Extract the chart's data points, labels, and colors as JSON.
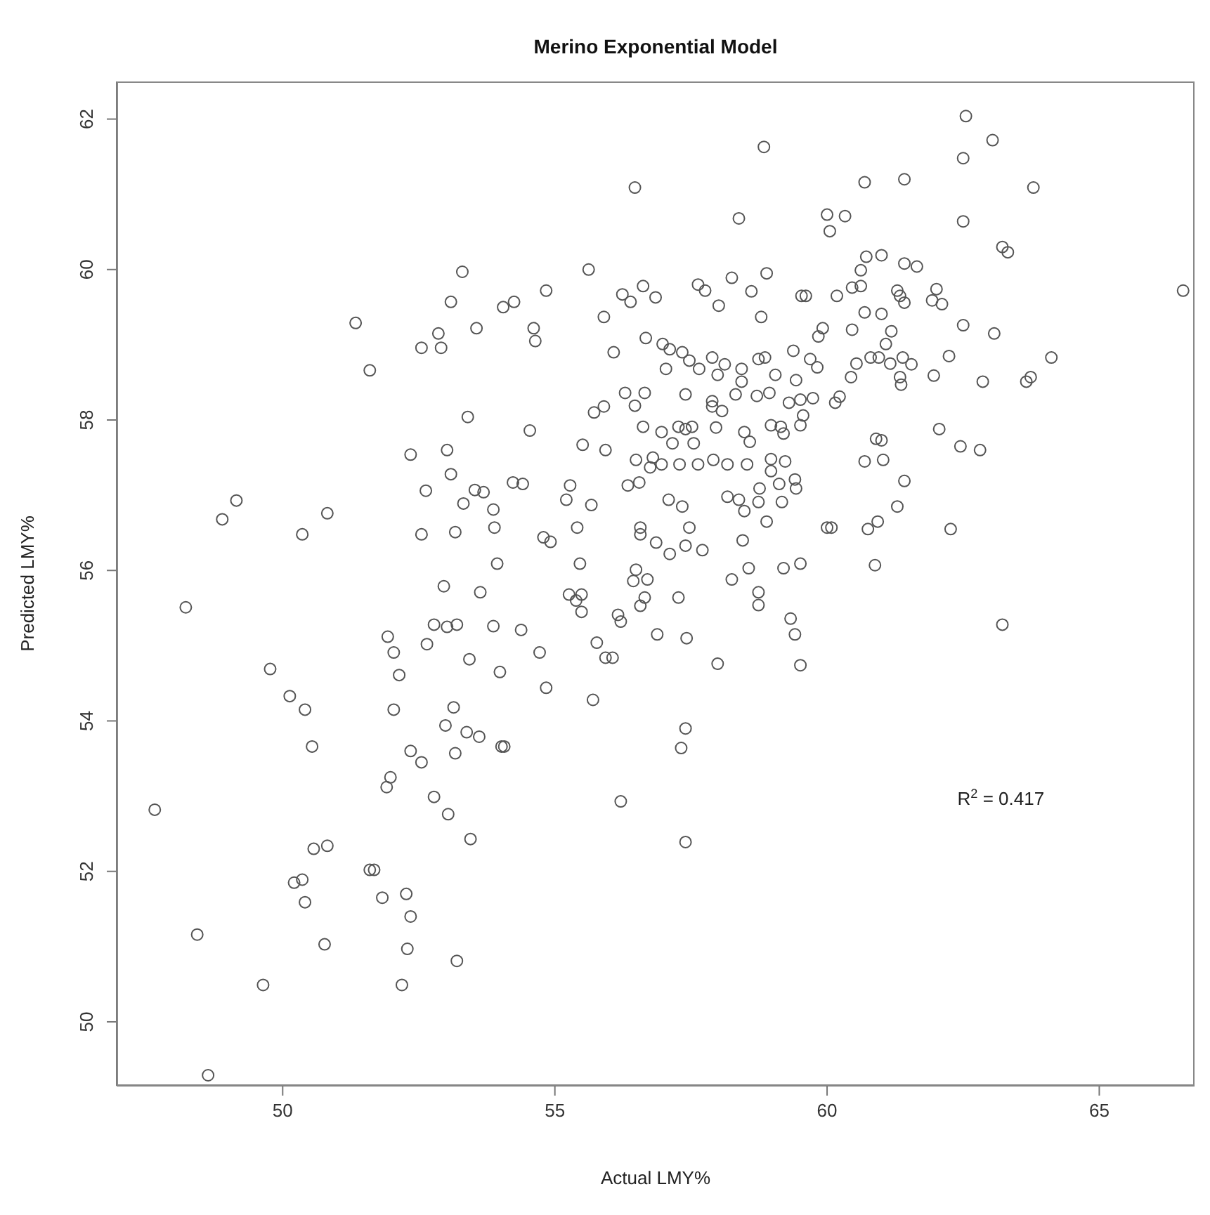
{
  "chart_data": {
    "type": "scatter",
    "title": "Merino Exponential Model",
    "xlabel": "Actual LMY%",
    "ylabel": "Predicted LMY%",
    "annotations": [
      "R$^{2}$ = 0.417"
    ],
    "color": "#555555",
    "marker": "circle",
    "grid": false,
    "legend": false,
    "xlim": [
      46.95,
      66.75
    ],
    "ylim": [
      49.15,
      62.5
    ],
    "xticks": [
      50,
      55,
      60,
      65
    ],
    "yticks": [
      50,
      52,
      54,
      56,
      58,
      60,
      62
    ],
    "x": [
      53.3,
      53.09,
      51.34,
      52.86,
      52.55,
      52.91,
      51.6,
      53.4,
      52.35,
      53.02,
      53.09,
      52.63,
      53.32,
      49.15,
      48.89,
      50.82,
      50.36,
      52.55,
      53.17,
      53.53,
      53.56,
      58.84,
      56.47,
      58.38,
      60.0,
      60.05,
      55.62,
      54.84,
      54.05,
      54.25,
      54.61,
      54.64,
      55.9,
      56.24,
      56.39,
      56.62,
      56.85,
      57.63,
      57.76,
      58.25,
      58.89,
      58.61,
      58.01,
      58.79,
      59.53,
      59.61,
      59.92,
      59.84,
      56.08,
      56.67,
      56.98,
      57.11,
      57.34,
      57.47,
      57.65,
      57.89,
      58.12,
      57.99,
      58.43,
      58.43,
      58.74,
      58.86,
      59.05,
      59.38,
      59.69,
      59.82,
      59.43,
      57.04,
      56.29,
      56.65,
      56.47,
      57.4,
      57.89,
      57.89,
      58.07,
      58.32,
      58.71,
      58.94,
      59.3,
      59.51,
      59.74,
      59.56,
      59.51,
      55.72,
      55.9,
      54.54,
      56.62,
      56.96,
      57.27,
      57.52,
      57.4,
      57.96,
      58.48,
      58.58,
      58.97,
      59.15,
      59.2,
      55.51,
      55.93,
      57.16,
      57.55,
      56.49,
      56.8,
      56.96,
      56.75,
      57.29,
      57.63,
      57.91,
      58.17,
      58.53,
      58.97,
      59.23,
      58.97,
      54.23,
      54.41,
      53.69,
      55.28,
      56.34,
      56.55,
      58.76,
      59.12,
      59.41,
      59.43,
      53.87,
      55.21,
      55.67,
      57.09,
      57.34,
      58.17,
      58.38,
      58.48,
      58.74,
      59.17,
      58.89,
      53.89,
      55.41,
      56.57,
      56.57,
      57.47,
      54.79,
      54.92,
      56.86,
      57.4,
      57.71,
      57.11,
      58.45,
      53.94,
      55.46,
      56.49,
      58.56,
      59.2,
      59.51,
      60.0,
      60.08,
      62.55,
      63.04,
      62.5,
      60.69,
      61.42,
      63.79,
      60.33,
      62.5,
      63.22,
      63.32,
      60.72,
      61.0,
      60.62,
      61.42,
      61.65,
      60.46,
      60.62,
      60.18,
      61.29,
      61.34,
      61.42,
      62.01,
      61.93,
      62.11,
      66.54,
      60.69,
      61.0,
      60.46,
      61.18,
      61.08,
      62.5,
      63.07,
      60.54,
      60.8,
      60.95,
      61.16,
      61.39,
      61.55,
      62.24,
      64.12,
      60.44,
      61.34,
      61.36,
      61.96,
      62.86,
      63.66,
      63.74,
      60.15,
      60.23,
      62.06,
      60.9,
      61.0,
      62.45,
      62.81,
      60.69,
      61.03,
      61.42,
      61.29,
      60.75,
      60.93,
      62.27,
      60.88,
      52.96,
      48.22,
      52.78,
      53.02,
      53.2,
      51.93,
      52.04,
      52.65,
      53.43,
      49.77,
      52.14,
      50.13,
      50.41,
      52.04,
      53.14,
      52.99,
      53.38,
      50.54,
      52.35,
      52.55,
      53.17,
      51.98,
      51.91,
      47.65,
      52.78,
      53.04,
      53.45,
      50.57,
      50.82,
      51.6,
      51.68,
      50.21,
      50.36,
      50.41,
      51.83,
      52.27,
      52.35,
      48.43,
      50.77,
      52.29,
      53.2,
      49.64,
      52.19,
      48.63,
      53.63,
      55.26,
      55.49,
      55.39,
      55.49,
      56.44,
      56.7,
      56.65,
      56.57,
      56.16,
      56.21,
      57.27,
      58.25,
      58.74,
      58.74,
      59.33,
      59.41,
      59.51,
      53.87,
      54.38,
      54.72,
      55.77,
      55.93,
      56.06,
      56.88,
      57.42,
      57.99,
      53.99,
      54.84,
      55.7,
      53.61,
      54.02,
      54.07,
      57.4,
      57.32,
      56.21,
      57.4,
      63.22
    ],
    "values": [
      59.97,
      59.57,
      59.29,
      59.15,
      58.96,
      58.96,
      58.66,
      58.04,
      57.54,
      57.6,
      57.28,
      57.06,
      56.89,
      56.93,
      56.68,
      56.76,
      56.48,
      56.48,
      56.51,
      57.07,
      59.22,
      61.63,
      61.09,
      60.68,
      60.73,
      60.51,
      60.0,
      59.72,
      59.5,
      59.57,
      59.22,
      59.05,
      59.37,
      59.67,
      59.57,
      59.78,
      59.63,
      59.8,
      59.72,
      59.89,
      59.95,
      59.71,
      59.52,
      59.37,
      59.65,
      59.65,
      59.22,
      59.11,
      58.9,
      59.09,
      59.01,
      58.94,
      58.9,
      58.79,
      58.68,
      58.83,
      58.74,
      58.6,
      58.68,
      58.51,
      58.81,
      58.83,
      58.6,
      58.92,
      58.81,
      58.7,
      58.53,
      58.68,
      58.36,
      58.36,
      58.19,
      58.34,
      58.25,
      58.18,
      58.12,
      58.34,
      58.32,
      58.36,
      58.23,
      58.27,
      58.29,
      58.06,
      57.93,
      58.1,
      58.18,
      57.86,
      57.91,
      57.84,
      57.91,
      57.91,
      57.88,
      57.9,
      57.84,
      57.71,
      57.93,
      57.91,
      57.82,
      57.67,
      57.6,
      57.69,
      57.69,
      57.47,
      57.5,
      57.41,
      57.37,
      57.41,
      57.41,
      57.47,
      57.41,
      57.41,
      57.48,
      57.45,
      57.32,
      57.17,
      57.15,
      57.04,
      57.13,
      57.13,
      57.17,
      57.09,
      57.15,
      57.21,
      57.09,
      56.81,
      56.94,
      56.87,
      56.94,
      56.85,
      56.98,
      56.94,
      56.79,
      56.91,
      56.91,
      56.65,
      56.57,
      56.57,
      56.57,
      56.48,
      56.57,
      56.44,
      56.38,
      56.37,
      56.33,
      56.27,
      56.22,
      56.4,
      56.09,
      56.09,
      56.01,
      56.03,
      56.03,
      56.09,
      56.57,
      56.57,
      62.04,
      61.72,
      61.48,
      61.16,
      61.2,
      61.09,
      60.71,
      60.64,
      60.3,
      60.23,
      60.17,
      60.19,
      59.99,
      60.08,
      60.04,
      59.76,
      59.78,
      59.65,
      59.72,
      59.65,
      59.56,
      59.74,
      59.59,
      59.54,
      59.72,
      59.43,
      59.41,
      59.2,
      59.18,
      59.01,
      59.26,
      59.15,
      58.75,
      58.83,
      58.83,
      58.75,
      58.83,
      58.74,
      58.85,
      58.83,
      58.57,
      58.57,
      58.47,
      58.59,
      58.51,
      58.51,
      58.57,
      58.23,
      58.31,
      57.88,
      57.75,
      57.73,
      57.65,
      57.6,
      57.45,
      57.47,
      57.19,
      56.85,
      56.55,
      56.65,
      56.55,
      56.07,
      55.79,
      55.51,
      55.28,
      55.25,
      55.28,
      55.12,
      54.91,
      55.02,
      54.82,
      54.69,
      54.61,
      54.33,
      54.15,
      54.15,
      54.18,
      53.94,
      53.85,
      53.66,
      53.6,
      53.45,
      53.57,
      53.25,
      53.12,
      52.82,
      52.99,
      52.76,
      52.43,
      52.3,
      52.34,
      52.02,
      52.02,
      51.85,
      51.89,
      51.59,
      51.65,
      51.7,
      51.4,
      51.16,
      51.03,
      50.97,
      50.81,
      50.49,
      50.49,
      49.29,
      55.71,
      55.68,
      55.68,
      55.6,
      55.45,
      55.86,
      55.88,
      55.64,
      55.53,
      55.41,
      55.32,
      55.64,
      55.88,
      55.71,
      55.54,
      55.36,
      55.15,
      54.74,
      55.26,
      55.21,
      54.91,
      55.04,
      54.84,
      54.84,
      55.15,
      55.1,
      54.76,
      54.65,
      54.44,
      54.28,
      53.79,
      53.66,
      53.66,
      53.9,
      53.64,
      52.93,
      52.39,
      55.28
    ]
  }
}
